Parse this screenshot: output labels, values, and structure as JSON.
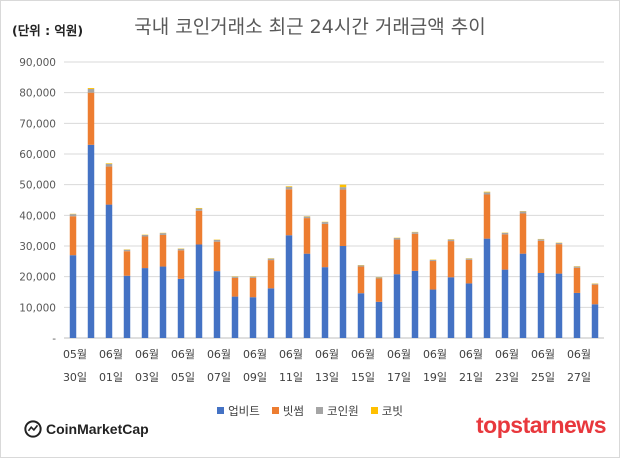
{
  "unit_label": "(단위 : 억원)",
  "logos": {
    "left": "CoinMarketCap",
    "right": "topstarnews"
  },
  "colors": {
    "upbit": "#4472c4",
    "bithumb": "#ed7d31",
    "coinone": "#a5a5a5",
    "korbit": "#ffc000"
  },
  "chart_data": {
    "type": "bar",
    "stacked": true,
    "title": "국내 코인거래소 최근 24시간 거래금액 추이",
    "ylabel": "(단위 : 억원)",
    "ylim": [
      0,
      90000
    ],
    "yticks": [
      "-",
      "10,000",
      "20,000",
      "30,000",
      "40,000",
      "50,000",
      "60,000",
      "70,000",
      "80,000",
      "90,000"
    ],
    "grid": true,
    "legend": "bottom",
    "categories": [
      "05-30",
      "05-31",
      "06-01",
      "06-02",
      "06-03",
      "06-04",
      "06-05",
      "06-06",
      "06-07",
      "06-08",
      "06-09",
      "06-10",
      "06-11",
      "06-12",
      "06-13",
      "06-14",
      "06-15",
      "06-16",
      "06-17",
      "06-18",
      "06-19",
      "06-20",
      "06-21",
      "06-22",
      "06-23",
      "06-24",
      "06-25",
      "06-26",
      "06-27",
      "06-28"
    ],
    "x_labels": [
      {
        "month": "05월",
        "day": "30일"
      },
      {
        "month": "06월",
        "day": "01일"
      },
      {
        "month": "06월",
        "day": "03일"
      },
      {
        "month": "06월",
        "day": "05일"
      },
      {
        "month": "06월",
        "day": "07일"
      },
      {
        "month": "06월",
        "day": "09일"
      },
      {
        "month": "06월",
        "day": "11일"
      },
      {
        "month": "06월",
        "day": "13일"
      },
      {
        "month": "06월",
        "day": "15일"
      },
      {
        "month": "06월",
        "day": "17일"
      },
      {
        "month": "06월",
        "day": "19일"
      },
      {
        "month": "06월",
        "day": "21일"
      },
      {
        "month": "06월",
        "day": "23일"
      },
      {
        "month": "06월",
        "day": "25일"
      },
      {
        "month": "06월",
        "day": "27일"
      }
    ],
    "series": [
      {
        "name": "업비트",
        "color": "#4472c4",
        "values": [
          27000,
          63000,
          43500,
          20300,
          22800,
          23300,
          19300,
          30500,
          21800,
          13500,
          13300,
          16200,
          33500,
          27500,
          23100,
          30000,
          14600,
          11800,
          20800,
          21900,
          15800,
          19800,
          17800,
          32400,
          22300,
          27500,
          21200,
          21000,
          14700,
          11000
        ]
      },
      {
        "name": "빗썸",
        "color": "#ed7d31",
        "values": [
          12700,
          17000,
          12400,
          8000,
          10300,
          10300,
          9300,
          11000,
          9600,
          6100,
          6300,
          9200,
          15000,
          11600,
          14100,
          18400,
          8700,
          7600,
          11300,
          12100,
          9300,
          11800,
          7700,
          14400,
          11500,
          13100,
          10500,
          9600,
          8200,
          6400
        ]
      },
      {
        "name": "코인원",
        "color": "#a5a5a5",
        "values": [
          700,
          1200,
          900,
          500,
          500,
          600,
          500,
          700,
          600,
          400,
          400,
          500,
          800,
          500,
          600,
          800,
          400,
          400,
          500,
          500,
          400,
          500,
          400,
          700,
          500,
          700,
          500,
          400,
          400,
          300
        ]
      },
      {
        "name": "코빗",
        "color": "#ffc000",
        "values": [
          100,
          300,
          200,
          100,
          100,
          100,
          100,
          200,
          100,
          100,
          100,
          100,
          200,
          100,
          100,
          800,
          100,
          100,
          100,
          100,
          100,
          100,
          100,
          200,
          100,
          100,
          100,
          100,
          100,
          100
        ]
      }
    ]
  }
}
